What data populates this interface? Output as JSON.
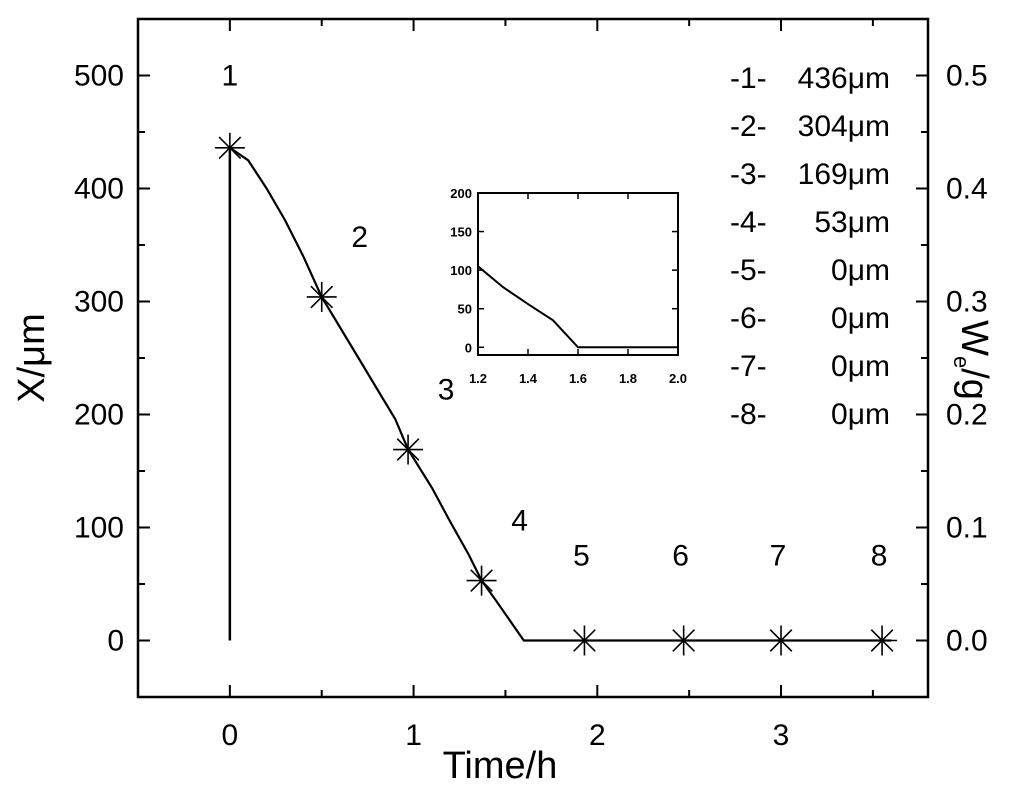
{
  "chart_data": [
    {
      "type": "line",
      "xlabel": "Time/h",
      "ylabel": "X/μm",
      "y2label_main": "W",
      "y2label_sub": "e",
      "y2label_tail": "/g",
      "xlim": [
        -0.5,
        3.8
      ],
      "ylim": [
        -50,
        550
      ],
      "y2lim": [
        -0.05,
        0.55
      ],
      "x_ticks": [
        0,
        1,
        2,
        3
      ],
      "y_ticks": [
        0,
        100,
        200,
        300,
        400,
        500
      ],
      "y2_ticks": [
        "0.0",
        "0.1",
        "0.2",
        "0.3",
        "0.4",
        "0.5"
      ],
      "vertical_line": {
        "x": 0,
        "y_from": 0,
        "y_to": 436
      },
      "curve": [
        {
          "x": 0,
          "y": 436
        },
        {
          "x": 0.1,
          "y": 425
        },
        {
          "x": 0.2,
          "y": 400
        },
        {
          "x": 0.3,
          "y": 372
        },
        {
          "x": 0.4,
          "y": 340
        },
        {
          "x": 0.5,
          "y": 304
        },
        {
          "x": 0.6,
          "y": 277
        },
        {
          "x": 0.7,
          "y": 250
        },
        {
          "x": 0.8,
          "y": 223
        },
        {
          "x": 0.9,
          "y": 196
        },
        {
          "x": 0.97,
          "y": 169
        },
        {
          "x": 1.1,
          "y": 135
        },
        {
          "x": 1.2,
          "y": 105
        },
        {
          "x": 1.3,
          "y": 76
        },
        {
          "x": 1.37,
          "y": 53
        },
        {
          "x": 1.45,
          "y": 35
        },
        {
          "x": 1.6,
          "y": 0
        },
        {
          "x": 3.6,
          "y": 0
        }
      ],
      "markers": [
        {
          "label": "1",
          "x": 0,
          "y": 436
        },
        {
          "label": "2",
          "x": 0.5,
          "y": 304
        },
        {
          "label": "3",
          "x": 0.97,
          "y": 169
        },
        {
          "label": "4",
          "x": 1.37,
          "y": 53
        },
        {
          "label": "5",
          "x": 1.93,
          "y": 0
        },
        {
          "label": "6",
          "x": 2.47,
          "y": 0
        },
        {
          "label": "7",
          "x": 3.0,
          "y": 0
        },
        {
          "label": "8",
          "x": 3.55,
          "y": 0
        }
      ],
      "legend": [
        {
          "id": "-1-",
          "value": "436μm"
        },
        {
          "id": "-2-",
          "value": "304μm"
        },
        {
          "id": "-3-",
          "value": "169μm"
        },
        {
          "id": "-4-",
          "value": "53μm"
        },
        {
          "id": "-5-",
          "value": "0μm"
        },
        {
          "id": "-6-",
          "value": "0μm"
        },
        {
          "id": "-7-",
          "value": "0μm"
        },
        {
          "id": "-8-",
          "value": "0μm"
        }
      ],
      "legend_placement": "top-right",
      "grid": false
    },
    {
      "type": "line",
      "role": "inset",
      "xlim": [
        1.2,
        2.0
      ],
      "ylim": [
        -10,
        200
      ],
      "x_ticks": [
        "1.2",
        "1.4",
        "1.6",
        "1.8",
        "2.0"
      ],
      "y_ticks": [
        "0",
        "50",
        "100",
        "150",
        "200"
      ],
      "curve": [
        {
          "x": 1.2,
          "y": 105
        },
        {
          "x": 1.3,
          "y": 78
        },
        {
          "x": 1.4,
          "y": 56
        },
        {
          "x": 1.5,
          "y": 35
        },
        {
          "x": 1.6,
          "y": 0
        },
        {
          "x": 2.0,
          "y": 0
        }
      ]
    }
  ]
}
